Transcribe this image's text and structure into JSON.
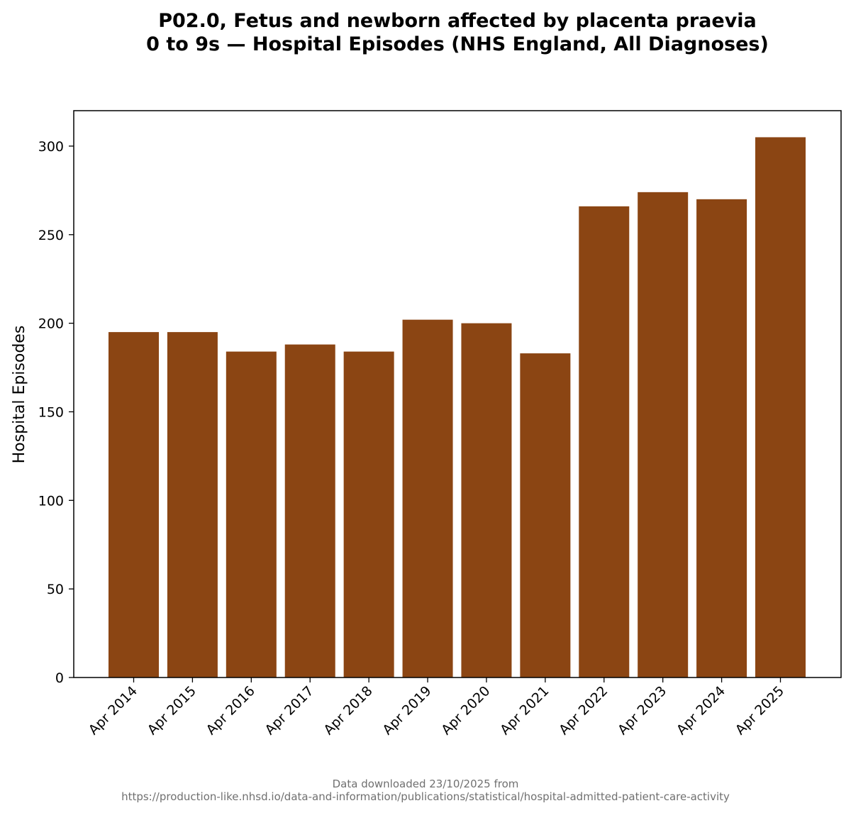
{
  "chart_data": {
    "type": "bar",
    "title_line1": "P02.0, Fetus and newborn affected by placenta praevia",
    "title_line2": "0 to 9s — Hospital Episodes (NHS England, All Diagnoses)",
    "xlabel": "",
    "ylabel": "Hospital Episodes",
    "categories": [
      "Apr 2014",
      "Apr 2015",
      "Apr 2016",
      "Apr 2017",
      "Apr 2018",
      "Apr 2019",
      "Apr 2020",
      "Apr 2021",
      "Apr 2022",
      "Apr 2023",
      "Apr 2024",
      "Apr 2025"
    ],
    "values": [
      195,
      195,
      184,
      188,
      184,
      202,
      200,
      183,
      266,
      274,
      270,
      305
    ],
    "ylim": [
      0,
      320
    ],
    "yticks": [
      "0",
      "50",
      "100",
      "150",
      "200",
      "250",
      "300"
    ],
    "ytick_values": [
      0,
      50,
      100,
      150,
      200,
      250,
      300
    ],
    "bar_color": "#8B4513",
    "grid": false,
    "legend": "none"
  },
  "footer": {
    "line1": "Data downloaded 23/10/2025 from",
    "line2": "https://production-like.nhsd.io/data-and-information/publications/statistical/hospital-admitted-patient-care-activity"
  }
}
